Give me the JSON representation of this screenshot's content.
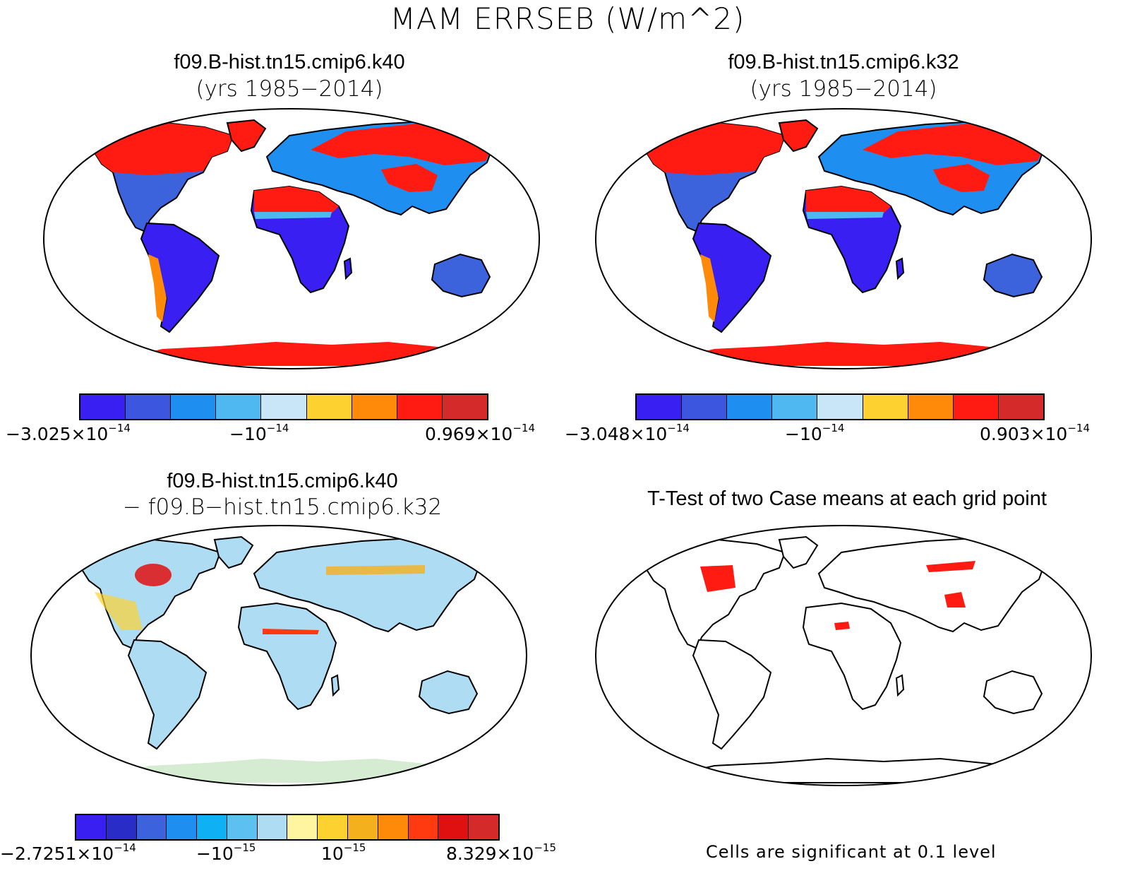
{
  "figure_title": "MAM ERRSEB (W/m^2)",
  "panels": {
    "top_left": {
      "title": "f09.B-hist.tn15.cmip6.k40",
      "subtitle": "(yrs 1985−2014)",
      "colorbar": {
        "colors": [
          "#3a1ff2",
          "#3c56e0",
          "#1e8ff0",
          "#4fb8f0",
          "#c8e6f7",
          "#fdd230",
          "#ff8a0a",
          "#ff1a12",
          "#d42a2a"
        ],
        "label_min_base": "−3.025×10",
        "label_min_exp": "−14",
        "label_mid_base": "−10",
        "label_mid_exp": "−14",
        "label_max_base": "0.969×10",
        "label_max_exp": "−14"
      }
    },
    "top_right": {
      "title": "f09.B-hist.tn15.cmip6.k32",
      "subtitle": "(yrs 1985−2014)",
      "colorbar": {
        "colors": [
          "#3a1ff2",
          "#3c56e0",
          "#1e8ff0",
          "#4fb8f0",
          "#c8e6f7",
          "#fdd230",
          "#ff8a0a",
          "#ff1a12",
          "#d42a2a"
        ],
        "label_min_base": "−3.048×10",
        "label_min_exp": "−14",
        "label_mid_base": "−10",
        "label_mid_exp": "−14",
        "label_max_base": "0.903×10",
        "label_max_exp": "−14"
      }
    },
    "bottom_left": {
      "title": "f09.B-hist.tn15.cmip6.k40",
      "subtitle": "− f09.B−hist.tn15.cmip6.k32",
      "colorbar": {
        "colors": [
          "#3a1ff2",
          "#2a2cc8",
          "#3c62dc",
          "#1e8ff0",
          "#10b0f5",
          "#5cc0f0",
          "#aedcf2",
          "#fff5a0",
          "#fdd230",
          "#f5b01e",
          "#ff8a0a",
          "#ff3a10",
          "#e01010",
          "#d42a2a"
        ],
        "label_min_base": "−2.7251×10",
        "label_min_exp": "−14",
        "label_mid1_base": "−10",
        "label_mid1_exp": "−15",
        "label_mid2_base": "10",
        "label_mid2_exp": "−15",
        "label_max_base": "8.329×10",
        "label_max_exp": "−15"
      }
    },
    "bottom_right": {
      "title": "T-Test of two Case means at each grid point",
      "note": "Cells are significant at 0.1 level"
    }
  }
}
